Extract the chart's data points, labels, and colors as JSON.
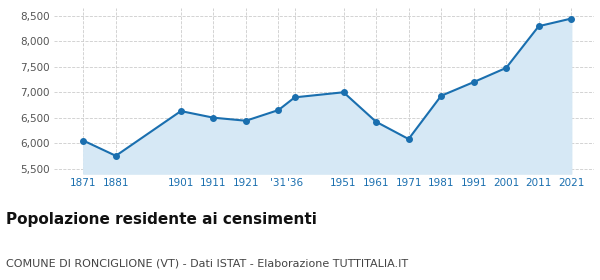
{
  "years": [
    1871,
    1881,
    1901,
    1911,
    1921,
    1931,
    1936,
    1951,
    1961,
    1971,
    1981,
    1991,
    2001,
    2011,
    2021
  ],
  "x_labels": [
    "1871",
    "1881",
    "1901",
    "1911",
    "1921",
    "'31",
    "'36",
    "1951",
    "1961",
    "1971",
    "1981",
    "1991",
    "2001",
    "2011",
    "2021"
  ],
  "population": [
    6050,
    5750,
    6630,
    6500,
    6440,
    6650,
    6900,
    7000,
    6420,
    6080,
    6930,
    7200,
    7480,
    8300,
    8450
  ],
  "line_color": "#1a6faf",
  "fill_color": "#d6e8f5",
  "marker_color": "#1a6faf",
  "background_color": "#ffffff",
  "grid_color": "#cccccc",
  "ylim": [
    5400,
    8650
  ],
  "yticks": [
    5500,
    6000,
    6500,
    7000,
    7500,
    8000,
    8500
  ],
  "title": "Popolazione residente ai censimenti",
  "subtitle": "COMUNE DI RONCIGLIONE (VT) - Dati ISTAT - Elaborazione TUTTITALIA.IT",
  "title_fontsize": 11,
  "subtitle_fontsize": 8,
  "tick_color": "#1a6faf",
  "ytick_color": "#555555"
}
